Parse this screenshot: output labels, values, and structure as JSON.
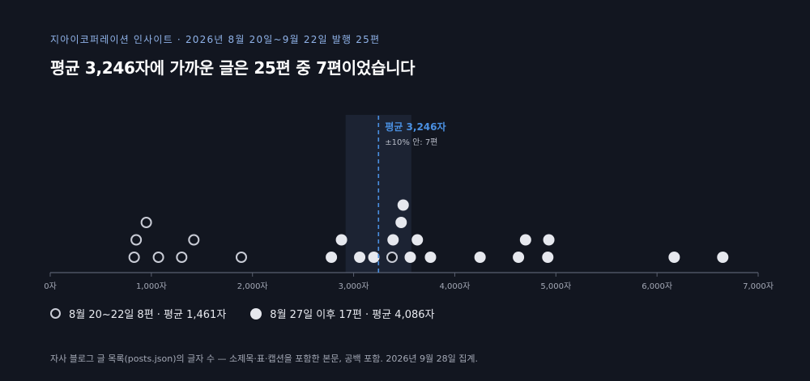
{
  "header": {
    "kicker": "지아이코퍼레이션 인사이트 · 2026년 8월 20일~9월 22일 발행 25편",
    "title": "평균 3,246자에 가까운 글은 25편 중 7편이었습니다"
  },
  "legend": {
    "early_label": "8월 20~22일 8편 · 평균 1,461자",
    "late_label": "8월 27일 이후 17편 · 평균 4,086자"
  },
  "footnote": "자사 블로그 글 목록(posts.json)의 글자 수 — 소제목·표·캡션을 포함한 본문, 공백 포함. 2026년 9월 28일 집계.",
  "colors": {
    "background": "#121620",
    "dot_fill": "#e6e8ee",
    "hollow_stroke": "#c9ccd6",
    "mean_line": "#4a90e2",
    "band": "#1c2333",
    "axis": "#5a6070"
  },
  "chart_data": {
    "type": "scatter",
    "x_unit": "자",
    "xlim": [
      0,
      7000
    ],
    "x_ticks": [
      0,
      1000,
      2000,
      3000,
      4000,
      5000,
      6000,
      7000
    ],
    "x_tick_labels": [
      "0자",
      "1,000자",
      "2,000자",
      "3,000자",
      "4,000자",
      "5,000자",
      "6,000자",
      "7,000자"
    ],
    "mean": 3246,
    "mean_label": "평균 3,246자",
    "band_range": [
      2921,
      3571
    ],
    "band_label": "±10% 안: 7편",
    "series": [
      {
        "name": "8월 20~22일 8편 · 평균 1,461자",
        "style": "hollow",
        "values": [
          830,
          850,
          950,
          1070,
          1300,
          1420,
          1890,
          3380
        ]
      },
      {
        "name": "8월 27일 이후 17편 · 평균 4,086자",
        "style": "filled",
        "values": [
          2780,
          2880,
          3060,
          3200,
          3390,
          3470,
          3490,
          3560,
          3630,
          3760,
          4250,
          4630,
          4700,
          4920,
          4930,
          6170,
          6650
        ]
      }
    ]
  }
}
